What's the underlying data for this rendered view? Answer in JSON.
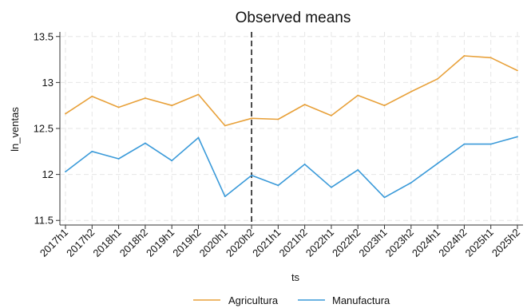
{
  "chart_data": {
    "type": "line",
    "title": "Observed means",
    "xlabel": "ts",
    "ylabel": "ln_ventas",
    "categories": [
      "2017h1",
      "2017h2",
      "2018h1",
      "2018h2",
      "2019h1",
      "2019h2",
      "2020h1",
      "2020h2",
      "2021h1",
      "2021h2",
      "2022h1",
      "2022h2",
      "2023h1",
      "2023h2",
      "2024h1",
      "2024h2",
      "2025h1",
      "2025h2"
    ],
    "ylim": [
      11.45,
      13.55
    ],
    "yticks": [
      "11.5",
      "12",
      "12.5",
      "13",
      "13.5"
    ],
    "grid": true,
    "reference_line": {
      "x": "2020h2",
      "style": "dashed",
      "color": "#000000"
    },
    "legend_position": "bottom",
    "series": [
      {
        "name": "Agricultura",
        "color": "#e8a13a",
        "values": [
          12.66,
          12.85,
          12.73,
          12.83,
          12.75,
          12.87,
          12.53,
          12.61,
          12.6,
          12.76,
          12.64,
          12.86,
          12.75,
          12.9,
          13.04,
          13.29,
          13.27,
          13.13
        ]
      },
      {
        "name": "Manufactura",
        "color": "#3a9ad9",
        "values": [
          12.03,
          12.25,
          12.17,
          12.34,
          12.15,
          12.4,
          11.76,
          11.99,
          11.88,
          12.11,
          11.86,
          12.05,
          11.75,
          11.91,
          12.12,
          12.33,
          12.33,
          12.41
        ]
      }
    ]
  }
}
